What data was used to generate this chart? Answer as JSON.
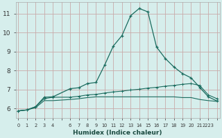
{
  "xlabel": "Humidex (Indice chaleur)",
  "bg_color": "#d6eeec",
  "grid_color": "#c8aaaa",
  "line_color": "#1a6b5e",
  "x_all": [
    0,
    1,
    2,
    3,
    4,
    5,
    6,
    7,
    8,
    9,
    10,
    11,
    12,
    13,
    14,
    15,
    16,
    17,
    18,
    19,
    20,
    21,
    22,
    23
  ],
  "x_data": [
    0,
    1,
    2,
    3,
    4,
    6,
    7,
    8,
    9,
    10,
    11,
    12,
    13,
    14,
    15,
    16,
    17,
    18,
    19,
    20,
    21,
    22,
    23
  ],
  "line1_y": [
    5.88,
    5.93,
    6.1,
    6.6,
    6.62,
    7.05,
    7.1,
    7.32,
    7.38,
    8.3,
    9.3,
    9.85,
    10.9,
    11.28,
    11.1,
    9.25,
    8.65,
    8.2,
    7.85,
    7.62,
    7.12,
    6.62,
    6.4
  ],
  "line2_y": [
    5.88,
    5.93,
    6.1,
    6.52,
    6.6,
    6.6,
    6.65,
    6.72,
    6.75,
    6.82,
    6.88,
    6.92,
    6.98,
    7.02,
    7.08,
    7.12,
    7.18,
    7.22,
    7.28,
    7.32,
    7.22,
    6.72,
    6.52
  ],
  "line3_y": [
    5.88,
    5.93,
    6.05,
    6.42,
    6.42,
    6.48,
    6.52,
    6.58,
    6.62,
    6.62,
    6.62,
    6.62,
    6.62,
    6.62,
    6.62,
    6.62,
    6.62,
    6.62,
    6.58,
    6.58,
    6.48,
    6.42,
    6.38
  ],
  "ylim": [
    5.5,
    11.6
  ],
  "yticks": [
    6,
    7,
    8,
    9,
    10,
    11
  ],
  "xtick_labels": [
    "0",
    "1",
    "2",
    "3",
    "4",
    "",
    "6",
    "7",
    "8",
    "9",
    "10",
    "11",
    "12",
    "13",
    "14",
    "15",
    "16",
    "17",
    "18",
    "19",
    "20",
    "21",
    "2223"
  ]
}
